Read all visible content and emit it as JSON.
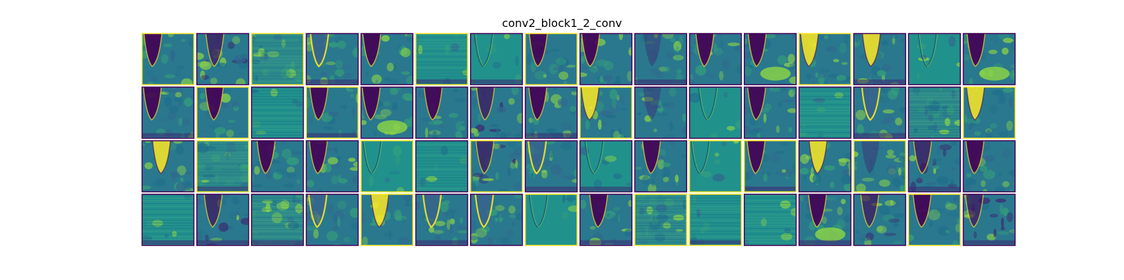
{
  "title": "conv2_block1_2_conv",
  "chart_data": {
    "type": "heatmap",
    "title": "conv2_block1_2_conv",
    "xlabel": "",
    "ylabel": "",
    "grid_rows": 4,
    "grid_cols": 16,
    "panel_count": 64,
    "axes_visible": false,
    "colormap": "viridis",
    "colormap_endpoints": [
      "#440154",
      "#fde725"
    ],
    "panels": [
      {
        "row": 1,
        "col": 1,
        "pattern": "dark-wedge"
      },
      {
        "row": 1,
        "col": 2,
        "pattern": "noisy-dark"
      },
      {
        "row": 1,
        "col": 3,
        "pattern": "striped"
      },
      {
        "row": 1,
        "col": 4,
        "pattern": "bright-edge-wedge"
      },
      {
        "row": 1,
        "col": 5,
        "pattern": "dark-wedge"
      },
      {
        "row": 1,
        "col": 6,
        "pattern": "uniform-striped"
      },
      {
        "row": 1,
        "col": 7,
        "pattern": "edge-outline"
      },
      {
        "row": 1,
        "col": 8,
        "pattern": "dark-wedge"
      },
      {
        "row": 1,
        "col": 9,
        "pattern": "dark-wedge"
      },
      {
        "row": 1,
        "col": 10,
        "pattern": "faint-wedge"
      },
      {
        "row": 1,
        "col": 11,
        "pattern": "dark-wedge"
      },
      {
        "row": 1,
        "col": 12,
        "pattern": "dark-wedge-bright-bottom"
      },
      {
        "row": 1,
        "col": 13,
        "pattern": "bright-wedge"
      },
      {
        "row": 1,
        "col": 14,
        "pattern": "bright-wedge"
      },
      {
        "row": 1,
        "col": 15,
        "pattern": "edge-outline"
      },
      {
        "row": 1,
        "col": 16,
        "pattern": "dark-wedge-bright-bottom"
      },
      {
        "row": 2,
        "col": 1,
        "pattern": "dark-wedge"
      },
      {
        "row": 2,
        "col": 2,
        "pattern": "dark-wedge"
      },
      {
        "row": 2,
        "col": 3,
        "pattern": "uniform-striped"
      },
      {
        "row": 2,
        "col": 4,
        "pattern": "dark-wedge"
      },
      {
        "row": 2,
        "col": 5,
        "pattern": "dark-wedge-bright-bottom"
      },
      {
        "row": 2,
        "col": 6,
        "pattern": "dark-wedge"
      },
      {
        "row": 2,
        "col": 7,
        "pattern": "noisy-dark"
      },
      {
        "row": 2,
        "col": 8,
        "pattern": "dark-wedge"
      },
      {
        "row": 2,
        "col": 9,
        "pattern": "bright-wedge"
      },
      {
        "row": 2,
        "col": 10,
        "pattern": "faint-wedge"
      },
      {
        "row": 2,
        "col": 11,
        "pattern": "edge-outline"
      },
      {
        "row": 2,
        "col": 12,
        "pattern": "dark-wedge"
      },
      {
        "row": 2,
        "col": 13,
        "pattern": "uniform-striped"
      },
      {
        "row": 2,
        "col": 14,
        "pattern": "bright-edge-wedge"
      },
      {
        "row": 2,
        "col": 15,
        "pattern": "striped"
      },
      {
        "row": 2,
        "col": 16,
        "pattern": "bright-wedge"
      },
      {
        "row": 3,
        "col": 1,
        "pattern": "bright-wedge"
      },
      {
        "row": 3,
        "col": 2,
        "pattern": "striped"
      },
      {
        "row": 3,
        "col": 3,
        "pattern": "dark-wedge"
      },
      {
        "row": 3,
        "col": 4,
        "pattern": "dark-wedge"
      },
      {
        "row": 3,
        "col": 5,
        "pattern": "edge-outline"
      },
      {
        "row": 3,
        "col": 6,
        "pattern": "uniform-striped"
      },
      {
        "row": 3,
        "col": 7,
        "pattern": "noisy-dark"
      },
      {
        "row": 3,
        "col": 8,
        "pattern": "bright-edge-wedge"
      },
      {
        "row": 3,
        "col": 9,
        "pattern": "edge-outline"
      },
      {
        "row": 3,
        "col": 10,
        "pattern": "dark-wedge"
      },
      {
        "row": 3,
        "col": 11,
        "pattern": "edge-outline"
      },
      {
        "row": 3,
        "col": 12,
        "pattern": "dark-wedge"
      },
      {
        "row": 3,
        "col": 13,
        "pattern": "bright-wedge"
      },
      {
        "row": 3,
        "col": 14,
        "pattern": "faint-wedge"
      },
      {
        "row": 3,
        "col": 15,
        "pattern": "noisy-dark"
      },
      {
        "row": 3,
        "col": 16,
        "pattern": "dark-wedge"
      },
      {
        "row": 4,
        "col": 1,
        "pattern": "uniform-striped"
      },
      {
        "row": 4,
        "col": 2,
        "pattern": "noisy-dark"
      },
      {
        "row": 4,
        "col": 3,
        "pattern": "striped"
      },
      {
        "row": 4,
        "col": 4,
        "pattern": "bright-edge-wedge"
      },
      {
        "row": 4,
        "col": 5,
        "pattern": "bright-wedge"
      },
      {
        "row": 4,
        "col": 6,
        "pattern": "bright-edge-wedge"
      },
      {
        "row": 4,
        "col": 7,
        "pattern": "bright-edge-wedge"
      },
      {
        "row": 4,
        "col": 8,
        "pattern": "edge-outline"
      },
      {
        "row": 4,
        "col": 9,
        "pattern": "dark-wedge"
      },
      {
        "row": 4,
        "col": 10,
        "pattern": "striped"
      },
      {
        "row": 4,
        "col": 11,
        "pattern": "uniform-striped"
      },
      {
        "row": 4,
        "col": 12,
        "pattern": "uniform-striped"
      },
      {
        "row": 4,
        "col": 13,
        "pattern": "dark-wedge-bright-bottom"
      },
      {
        "row": 4,
        "col": 14,
        "pattern": "noisy-dark"
      },
      {
        "row": 4,
        "col": 15,
        "pattern": "dark-wedge"
      },
      {
        "row": 4,
        "col": 16,
        "pattern": "noisy-dark"
      }
    ]
  }
}
